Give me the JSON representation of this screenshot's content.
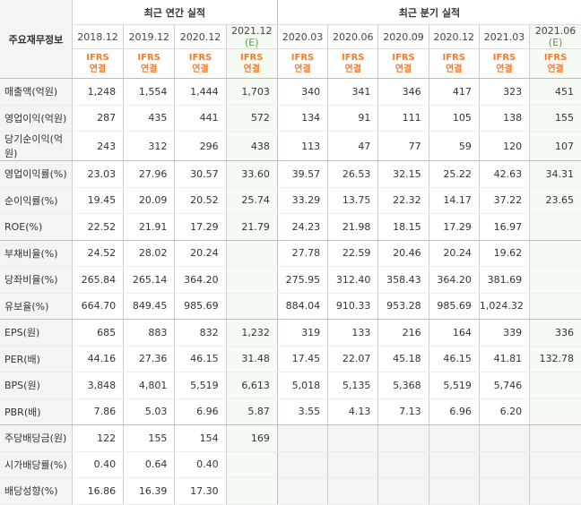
{
  "header": {
    "corner_label": "주요재무정보",
    "annual_group": "최근 연간 실적",
    "quarter_group": "최근 분기 실적",
    "annual_periods": [
      "2018.12",
      "2019.12",
      "2020.12",
      "2021.12"
    ],
    "annual_est_mark": "(E)",
    "quarter_periods": [
      "2020.03",
      "2020.06",
      "2020.09",
      "2020.12",
      "2021.03",
      "2021.06"
    ],
    "quarter_est_mark": "(E)",
    "ifrs_line1": "IFRS",
    "ifrs_line2": "연결"
  },
  "rows": [
    {
      "label": "매출액(억원)",
      "annual": [
        "1,248",
        "1,554",
        "1,444",
        "1,703"
      ],
      "quarter": [
        "340",
        "341",
        "346",
        "417",
        "323",
        "451"
      ]
    },
    {
      "label": "영업이익(억원)",
      "annual": [
        "287",
        "435",
        "441",
        "572"
      ],
      "quarter": [
        "134",
        "91",
        "111",
        "105",
        "138",
        "155"
      ]
    },
    {
      "label": "당기순이익(억원)",
      "annual": [
        "243",
        "312",
        "296",
        "438"
      ],
      "quarter": [
        "113",
        "47",
        "77",
        "59",
        "120",
        "107"
      ]
    },
    {
      "label": "영업이익률(%)",
      "annual": [
        "23.03",
        "27.96",
        "30.57",
        "33.60"
      ],
      "quarter": [
        "39.57",
        "26.53",
        "32.15",
        "25.22",
        "42.63",
        "34.31"
      ]
    },
    {
      "label": "순이익률(%)",
      "annual": [
        "19.45",
        "20.09",
        "20.52",
        "25.74"
      ],
      "quarter": [
        "33.29",
        "13.75",
        "22.32",
        "14.17",
        "37.22",
        "23.65"
      ]
    },
    {
      "label": "ROE(%)",
      "annual": [
        "22.52",
        "21.91",
        "17.29",
        "21.79"
      ],
      "quarter": [
        "24.23",
        "21.98",
        "18.15",
        "17.29",
        "16.97",
        ""
      ]
    },
    {
      "label": "부채비율(%)",
      "annual": [
        "24.52",
        "28.02",
        "20.24",
        ""
      ],
      "quarter": [
        "27.78",
        "22.59",
        "20.46",
        "20.24",
        "19.62",
        ""
      ]
    },
    {
      "label": "당좌비율(%)",
      "annual": [
        "265.84",
        "265.14",
        "364.20",
        ""
      ],
      "quarter": [
        "275.95",
        "312.40",
        "358.43",
        "364.20",
        "381.69",
        ""
      ]
    },
    {
      "label": "유보율(%)",
      "annual": [
        "664.70",
        "849.45",
        "985.69",
        ""
      ],
      "quarter": [
        "884.04",
        "910.33",
        "953.28",
        "985.69",
        "1,024.32",
        ""
      ]
    },
    {
      "label": "EPS(원)",
      "annual": [
        "685",
        "883",
        "832",
        "1,232"
      ],
      "quarter": [
        "319",
        "133",
        "216",
        "164",
        "339",
        "336"
      ]
    },
    {
      "label": "PER(배)",
      "annual": [
        "44.16",
        "27.36",
        "46.15",
        "31.48"
      ],
      "quarter": [
        "17.45",
        "22.07",
        "45.18",
        "46.15",
        "41.81",
        "132.78"
      ]
    },
    {
      "label": "BPS(원)",
      "annual": [
        "3,848",
        "4,801",
        "5,519",
        "6,613"
      ],
      "quarter": [
        "5,018",
        "5,135",
        "5,368",
        "5,519",
        "5,746",
        ""
      ]
    },
    {
      "label": "PBR(배)",
      "annual": [
        "7.86",
        "5.03",
        "6.96",
        "5.87"
      ],
      "quarter": [
        "3.55",
        "4.13",
        "7.13",
        "6.96",
        "6.20",
        ""
      ]
    },
    {
      "label": "주당배당금(원)",
      "annual": [
        "122",
        "155",
        "154",
        "169"
      ],
      "quarter": [
        "",
        "",
        "",
        "",
        "",
        ""
      ]
    },
    {
      "label": "시가배당률(%)",
      "annual": [
        "0.40",
        "0.64",
        "0.40",
        ""
      ],
      "quarter": [
        "",
        "",
        "",
        "",
        "",
        ""
      ]
    },
    {
      "label": "배당성향(%)",
      "annual": [
        "16.86",
        "16.39",
        "17.30",
        ""
      ],
      "quarter": [
        "",
        "",
        "",
        "",
        "",
        ""
      ]
    }
  ]
}
